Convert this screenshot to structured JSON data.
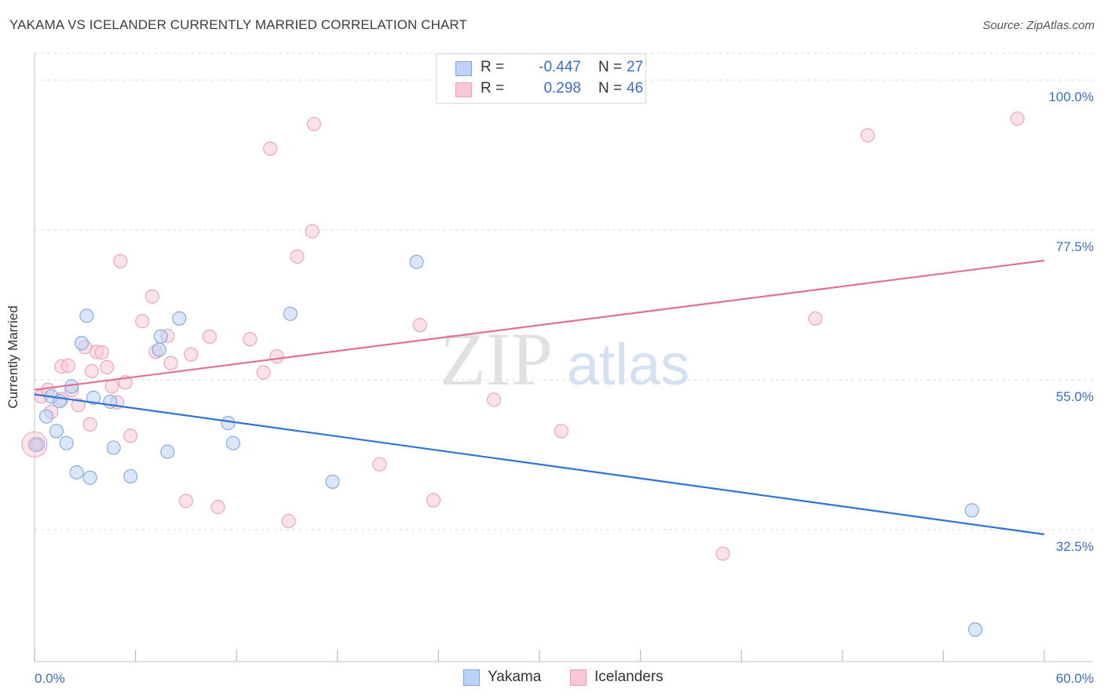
{
  "title": "YAKAMA VS ICELANDER CURRENTLY MARRIED CORRELATION CHART",
  "source": "Source: ZipAtlas.com",
  "watermark": {
    "zip": "ZIP",
    "atlas": "atlas"
  },
  "legend": {
    "rows": [
      {
        "r_label": "R =",
        "r_value": "-0.447",
        "n_label": "N =",
        "n_value": "27"
      },
      {
        "r_label": "R =",
        "r_value": "0.298",
        "n_label": "N =",
        "n_value": "46"
      }
    ]
  },
  "colors": {
    "yakama_fill": "#bcd3f5",
    "yakama_stroke": "#7fa6e0",
    "yakama_line": "#2f74d0",
    "icelander_fill": "#f8c8d7",
    "icelander_stroke": "#eba0b8",
    "icelander_line": "#e0709a",
    "value_text": "#3a6fc4",
    "grid": "#dddddd",
    "axis": "#cccccc"
  },
  "chart_data": {
    "type": "scatter",
    "title": "YAKAMA VS ICELANDER CURRENTLY MARRIED CORRELATION CHART",
    "xlabel": "",
    "ylabel": "Currently Married",
    "xlim": [
      0,
      60
    ],
    "ylim": [
      12.7,
      104
    ],
    "x_tick_labels": [
      "0.0%",
      "60.0%"
    ],
    "y_ticks": [
      32.5,
      55.0,
      77.5,
      100.0
    ],
    "y_tick_labels": [
      "32.5%",
      "55.0%",
      "77.5%",
      "100.0%"
    ],
    "grid": true,
    "legend_position": "top-center",
    "series": [
      {
        "name": "Yakama",
        "r": -0.447,
        "n": 27,
        "trend": {
          "x": [
            0,
            60
          ],
          "y": [
            52.8,
            31.8
          ]
        },
        "points": [
          [
            0.2,
            45.3
          ],
          [
            0.7,
            49.5
          ],
          [
            1.0,
            52.5
          ],
          [
            1.3,
            47.3
          ],
          [
            1.5,
            51.8
          ],
          [
            1.9,
            45.5
          ],
          [
            2.2,
            54.0
          ],
          [
            2.5,
            41.1
          ],
          [
            2.8,
            60.5
          ],
          [
            3.1,
            64.6
          ],
          [
            3.3,
            40.3
          ],
          [
            3.5,
            52.3
          ],
          [
            4.5,
            51.7
          ],
          [
            4.7,
            44.8
          ],
          [
            5.7,
            40.5
          ],
          [
            7.4,
            59.5
          ],
          [
            7.5,
            61.5
          ],
          [
            7.9,
            44.2
          ],
          [
            8.6,
            64.2
          ],
          [
            11.5,
            48.5
          ],
          [
            11.8,
            45.5
          ],
          [
            15.2,
            64.9
          ],
          [
            17.7,
            39.7
          ],
          [
            22.7,
            72.7
          ],
          [
            55.7,
            35.4
          ],
          [
            55.9,
            17.5
          ],
          [
            0.1,
            45.2
          ]
        ]
      },
      {
        "name": "Icelanders",
        "r": 0.298,
        "n": 46,
        "trend": {
          "x": [
            0,
            60
          ],
          "y": [
            53.5,
            72.9
          ]
        },
        "points": [
          [
            0.0,
            45.3
          ],
          [
            0.4,
            52.5
          ],
          [
            0.8,
            53.5
          ],
          [
            1.0,
            50.2
          ],
          [
            1.6,
            52.1
          ],
          [
            1.6,
            57.0
          ],
          [
            2.0,
            57.1
          ],
          [
            2.2,
            53.4
          ],
          [
            2.6,
            51.2
          ],
          [
            3.0,
            59.9
          ],
          [
            3.3,
            48.3
          ],
          [
            3.4,
            56.3
          ],
          [
            3.7,
            59.2
          ],
          [
            4.0,
            59.1
          ],
          [
            4.3,
            56.9
          ],
          [
            4.6,
            54.0
          ],
          [
            4.9,
            51.6
          ],
          [
            5.1,
            72.8
          ],
          [
            5.4,
            54.6
          ],
          [
            5.7,
            46.6
          ],
          [
            6.4,
            63.8
          ],
          [
            7.0,
            67.5
          ],
          [
            7.2,
            59.2
          ],
          [
            7.9,
            61.6
          ],
          [
            8.1,
            57.5
          ],
          [
            9.0,
            36.8
          ],
          [
            9.3,
            58.8
          ],
          [
            10.4,
            61.5
          ],
          [
            10.9,
            35.9
          ],
          [
            12.8,
            61.1
          ],
          [
            13.6,
            56.1
          ],
          [
            14.0,
            89.7
          ],
          [
            14.4,
            58.5
          ],
          [
            15.1,
            33.8
          ],
          [
            15.6,
            73.5
          ],
          [
            16.5,
            77.3
          ],
          [
            16.6,
            93.4
          ],
          [
            20.5,
            42.3
          ],
          [
            22.9,
            63.2
          ],
          [
            23.7,
            36.9
          ],
          [
            27.3,
            52.0
          ],
          [
            31.3,
            47.3
          ],
          [
            40.9,
            28.9
          ],
          [
            46.4,
            64.2
          ],
          [
            49.5,
            91.7
          ],
          [
            58.4,
            94.2
          ]
        ]
      }
    ]
  },
  "bottom_legend": [
    {
      "label": "Yakama"
    },
    {
      "label": "Icelanders"
    }
  ]
}
